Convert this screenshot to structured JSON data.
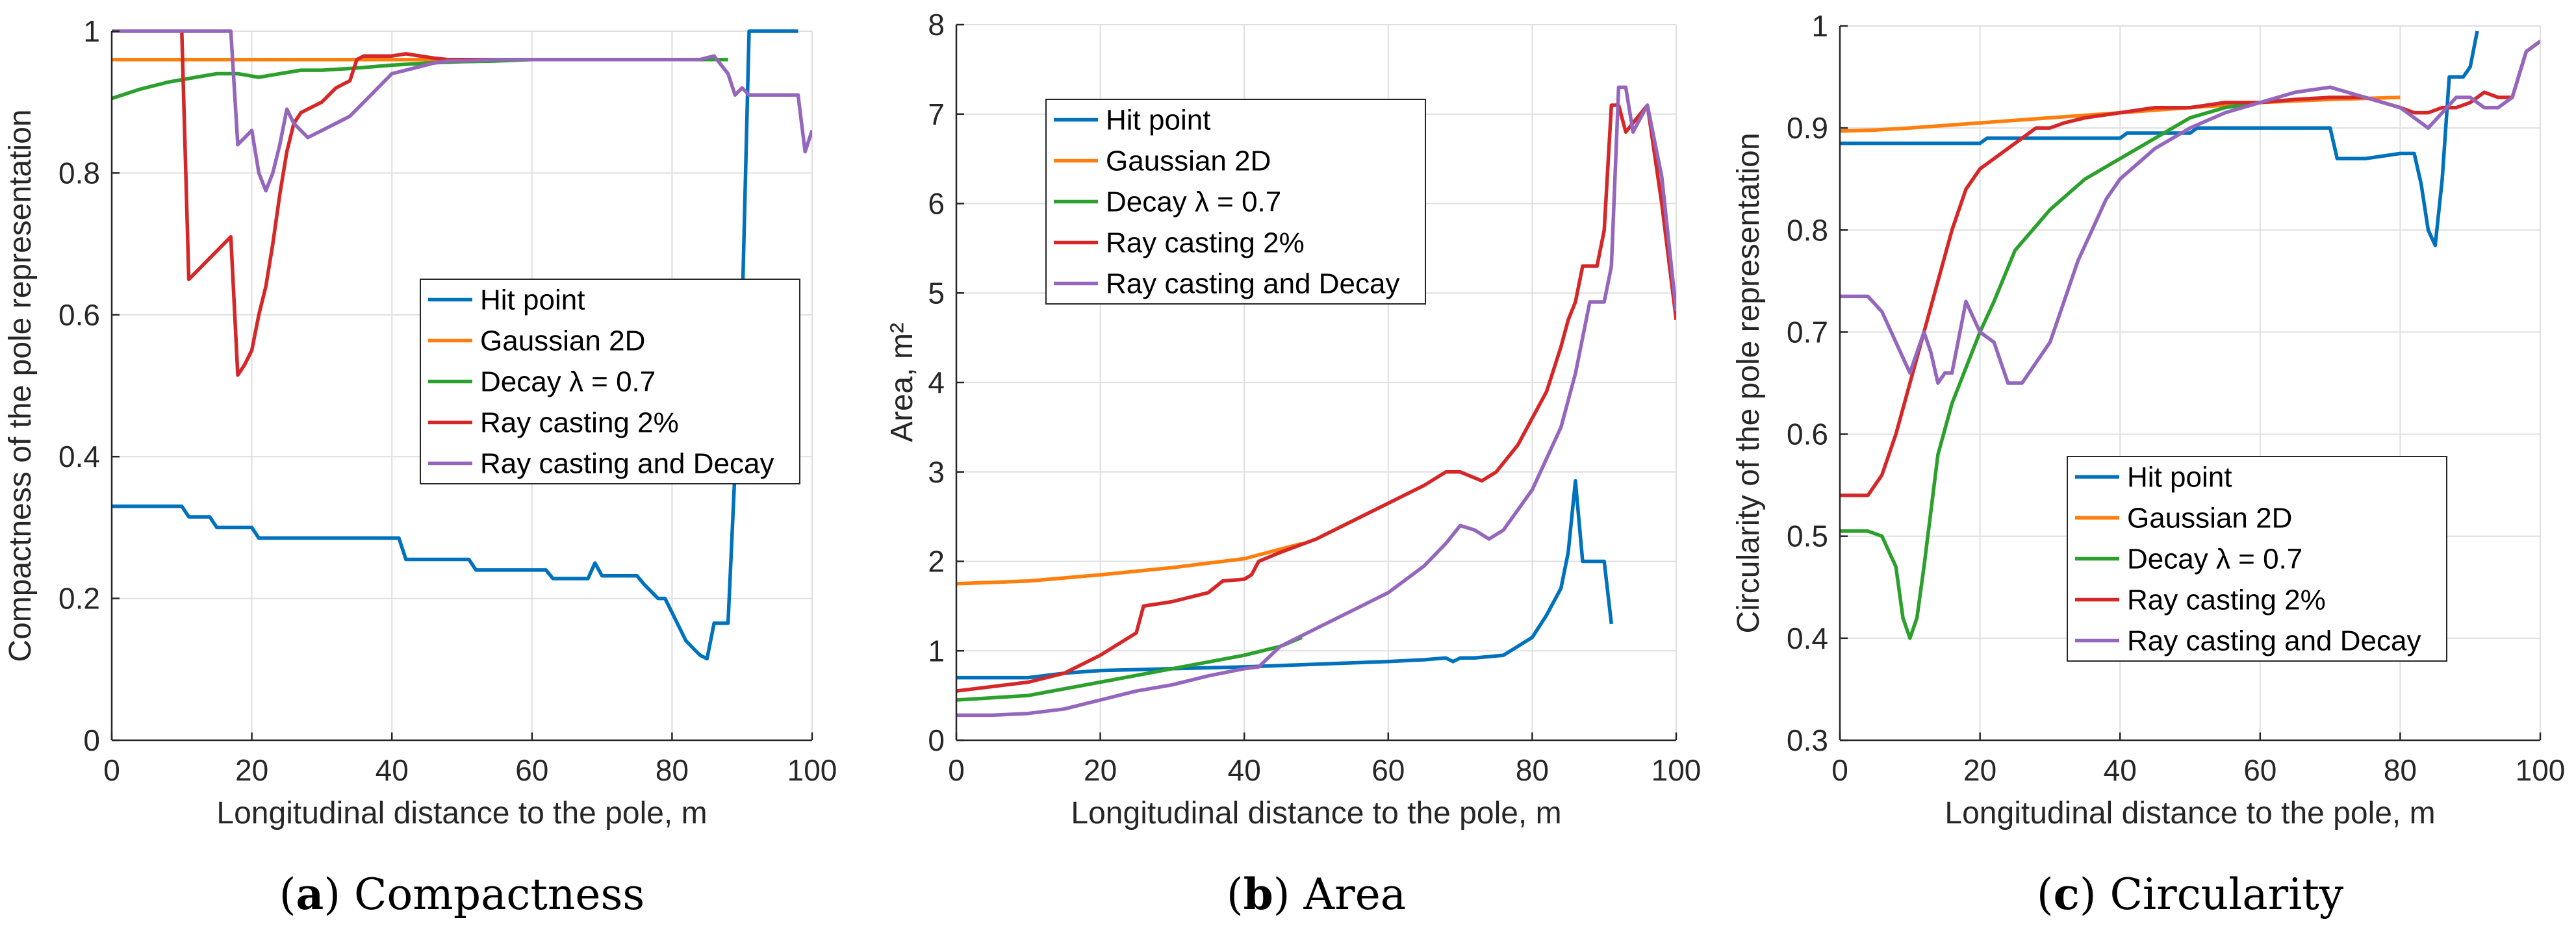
{
  "series_colors": [
    "#0072BD",
    "#FF7F0E",
    "#2CA02C",
    "#D62728",
    "#9467BD"
  ],
  "chart_data": [
    {
      "type": "line",
      "caption_letter": "a",
      "caption_title": "Compactness",
      "xlabel": "Longitudinal distance to the pole, m",
      "ylabel": "Compactness of the pole representation",
      "xlim": [
        0,
        100
      ],
      "ylim": [
        0,
        1
      ],
      "xticks": [
        0,
        20,
        40,
        60,
        80,
        100
      ],
      "yticks": [
        0,
        0.2,
        0.4,
        0.6,
        0.8,
        1
      ],
      "xtick_labels": [
        "0",
        "20",
        "40",
        "60",
        "80",
        "100"
      ],
      "ytick_labels": [
        "0",
        "0.2",
        "0.4",
        "0.6",
        "0.8",
        "1"
      ],
      "grid": true,
      "legend_position": "center-right",
      "series": [
        {
          "name": "Hit point",
          "x": [
            0,
            10,
            11,
            14,
            15,
            20,
            21,
            41,
            42,
            51,
            52,
            62,
            63,
            68,
            69,
            70,
            71,
            75,
            76,
            78,
            79,
            80,
            81,
            82,
            83,
            84,
            85,
            86,
            87,
            88,
            90,
            91,
            92,
            93,
            94,
            95,
            96,
            98
          ],
          "y": [
            0.33,
            0.33,
            0.315,
            0.315,
            0.3,
            0.3,
            0.285,
            0.285,
            0.255,
            0.255,
            0.24,
            0.24,
            0.228,
            0.228,
            0.25,
            0.232,
            0.232,
            0.232,
            0.22,
            0.2,
            0.2,
            0.18,
            0.16,
            0.14,
            0.13,
            0.12,
            0.115,
            0.165,
            0.165,
            0.165,
            0.6,
            1,
            1,
            1,
            1,
            1,
            1,
            1
          ]
        },
        {
          "name": "Gaussian 2D",
          "x": [
            0,
            20,
            40,
            60,
            88
          ],
          "y": [
            0.96,
            0.96,
            0.96,
            0.96,
            0.96
          ]
        },
        {
          "name": "Decay λ = 0.7",
          "x": [
            0,
            4,
            8,
            12,
            15,
            18,
            21,
            24,
            27,
            30,
            35,
            40,
            45,
            50,
            55,
            60,
            65,
            70,
            75,
            80,
            85,
            88
          ],
          "y": [
            0.905,
            0.918,
            0.928,
            0.935,
            0.94,
            0.94,
            0.935,
            0.94,
            0.945,
            0.945,
            0.948,
            0.952,
            0.955,
            0.957,
            0.958,
            0.96,
            0.96,
            0.96,
            0.96,
            0.96,
            0.96,
            0.96
          ]
        },
        {
          "name": "Ray casting 2%",
          "x": [
            10,
            11,
            12,
            14,
            16,
            17,
            18,
            19,
            20,
            21,
            22,
            23,
            24,
            25,
            26,
            27,
            28,
            30,
            32,
            34,
            35,
            36,
            40,
            42,
            44,
            46,
            48,
            50,
            55,
            60,
            66
          ],
          "y": [
            1,
            0.65,
            0.66,
            0.68,
            0.7,
            0.71,
            0.515,
            0.53,
            0.55,
            0.6,
            0.64,
            0.7,
            0.77,
            0.83,
            0.87,
            0.885,
            0.89,
            0.9,
            0.92,
            0.93,
            0.96,
            0.965,
            0.965,
            0.968,
            0.965,
            0.962,
            0.96,
            0.96,
            0.96,
            0.96,
            0.96
          ]
        },
        {
          "name": "Ray casting and Decay",
          "x": [
            0,
            17,
            18,
            20,
            21,
            22,
            23,
            24,
            25,
            26,
            28,
            30,
            32,
            34,
            36,
            38,
            40,
            42,
            44,
            46,
            48,
            50,
            55,
            60,
            70,
            80,
            84,
            86,
            88,
            89,
            90,
            91,
            92,
            94,
            96,
            98,
            99,
            100
          ],
          "y": [
            1,
            1,
            0.84,
            0.86,
            0.8,
            0.775,
            0.8,
            0.84,
            0.89,
            0.87,
            0.85,
            0.86,
            0.87,
            0.88,
            0.9,
            0.92,
            0.94,
            0.945,
            0.95,
            0.955,
            0.958,
            0.958,
            0.96,
            0.96,
            0.96,
            0.96,
            0.96,
            0.965,
            0.94,
            0.91,
            0.92,
            0.91,
            0.91,
            0.91,
            0.91,
            0.91,
            0.83,
            0.86
          ]
        }
      ]
    },
    {
      "type": "line",
      "caption_letter": "b",
      "caption_title": "Area",
      "xlabel": "Longitudinal distance to the pole, m",
      "ylabel": "Area, m²",
      "xlim": [
        0,
        100
      ],
      "ylim": [
        0,
        8
      ],
      "xticks": [
        0,
        20,
        40,
        60,
        80,
        100
      ],
      "yticks": [
        0,
        1,
        2,
        3,
        4,
        5,
        6,
        7,
        8
      ],
      "xtick_labels": [
        "0",
        "20",
        "40",
        "60",
        "80",
        "100"
      ],
      "ytick_labels": [
        "0",
        "1",
        "2",
        "3",
        "4",
        "5",
        "6",
        "7",
        "8"
      ],
      "grid": true,
      "legend_position": "top-left",
      "series": [
        {
          "name": "Hit point",
          "x": [
            0,
            10,
            15,
            20,
            30,
            40,
            50,
            60,
            65,
            68,
            69,
            70,
            72,
            76,
            78,
            80,
            82,
            84,
            85,
            86,
            87,
            88,
            90,
            91
          ],
          "y": [
            0.7,
            0.7,
            0.75,
            0.78,
            0.8,
            0.82,
            0.85,
            0.88,
            0.9,
            0.92,
            0.88,
            0.92,
            0.92,
            0.95,
            1.05,
            1.15,
            1.4,
            1.7,
            2.1,
            2.9,
            2.0,
            2.0,
            2.0,
            1.3
          ]
        },
        {
          "name": "Gaussian 2D",
          "x": [
            0,
            10,
            20,
            30,
            40,
            48
          ],
          "y": [
            1.75,
            1.78,
            1.85,
            1.93,
            2.03,
            2.2
          ]
        },
        {
          "name": "Decay λ = 0.7",
          "x": [
            0,
            10,
            20,
            30,
            40,
            45,
            48
          ],
          "y": [
            0.45,
            0.5,
            0.65,
            0.8,
            0.95,
            1.05,
            1.15
          ]
        },
        {
          "name": "Ray casting 2%",
          "x": [
            0,
            5,
            10,
            15,
            20,
            25,
            26,
            30,
            35,
            37,
            40,
            41,
            42,
            45,
            50,
            55,
            60,
            65,
            68,
            70,
            73,
            75,
            78,
            80,
            82,
            84,
            85,
            86,
            87,
            88,
            89,
            90,
            91,
            92,
            93,
            94,
            96,
            98,
            100
          ],
          "y": [
            0.55,
            0.6,
            0.65,
            0.75,
            0.95,
            1.2,
            1.5,
            1.55,
            1.65,
            1.78,
            1.8,
            1.85,
            2.0,
            2.1,
            2.25,
            2.45,
            2.65,
            2.85,
            3.0,
            3.0,
            2.9,
            3.0,
            3.3,
            3.6,
            3.9,
            4.4,
            4.7,
            4.9,
            5.3,
            5.3,
            5.3,
            5.7,
            7.1,
            7.1,
            6.8,
            6.9,
            7.1,
            6.0,
            4.7
          ]
        },
        {
          "name": "Ray casting and Decay",
          "x": [
            0,
            5,
            10,
            15,
            20,
            25,
            30,
            35,
            40,
            42,
            45,
            50,
            55,
            60,
            65,
            68,
            70,
            72,
            74,
            76,
            80,
            84,
            86,
            87,
            88,
            90,
            91,
            92,
            93,
            94,
            96,
            98,
            100
          ],
          "y": [
            0.28,
            0.28,
            0.3,
            0.35,
            0.45,
            0.55,
            0.62,
            0.72,
            0.8,
            0.82,
            1.05,
            1.25,
            1.45,
            1.65,
            1.95,
            2.2,
            2.4,
            2.35,
            2.25,
            2.35,
            2.8,
            3.5,
            4.1,
            4.5,
            4.9,
            4.9,
            5.3,
            7.3,
            7.3,
            6.8,
            7.1,
            6.3,
            4.8
          ]
        }
      ]
    },
    {
      "type": "line",
      "caption_letter": "c",
      "caption_title": "Circularity",
      "xlabel": "Longitudinal distance to the pole, m",
      "ylabel": "Circularity of the pole representation",
      "xlim": [
        0,
        100
      ],
      "ylim": [
        0.3,
        1
      ],
      "xticks": [
        0,
        20,
        40,
        60,
        80,
        100
      ],
      "yticks": [
        0.3,
        0.4,
        0.5,
        0.6,
        0.7,
        0.8,
        0.9,
        1
      ],
      "xtick_labels": [
        "0",
        "20",
        "40",
        "60",
        "80",
        "100"
      ],
      "ytick_labels": [
        "0.3",
        "0.4",
        "0.5",
        "0.6",
        "0.7",
        "0.8",
        "0.9",
        "1"
      ],
      "grid": true,
      "legend_position": "bottom-center",
      "series": [
        {
          "name": "Hit point",
          "x": [
            0,
            20,
            21,
            40,
            41,
            50,
            51,
            70,
            71,
            75,
            80,
            82,
            83,
            84,
            85,
            86,
            87,
            88,
            89,
            90,
            91
          ],
          "y": [
            0.885,
            0.885,
            0.89,
            0.89,
            0.895,
            0.895,
            0.9,
            0.9,
            0.87,
            0.87,
            0.875,
            0.875,
            0.845,
            0.8,
            0.785,
            0.85,
            0.95,
            0.95,
            0.95,
            0.96,
            0.995
          ]
        },
        {
          "name": "Gaussian 2D",
          "x": [
            0,
            5,
            10,
            20,
            30,
            40,
            50,
            60,
            70,
            80
          ],
          "y": [
            0.897,
            0.898,
            0.9,
            0.905,
            0.91,
            0.915,
            0.92,
            0.925,
            0.928,
            0.93
          ]
        },
        {
          "name": "Decay λ = 0.7",
          "x": [
            0,
            4,
            6,
            8,
            9,
            10,
            11,
            12,
            14,
            16,
            20,
            22,
            25,
            30,
            35,
            40,
            45,
            50,
            55,
            60
          ],
          "y": [
            0.505,
            0.505,
            0.5,
            0.47,
            0.42,
            0.4,
            0.42,
            0.47,
            0.58,
            0.63,
            0.7,
            0.73,
            0.78,
            0.82,
            0.85,
            0.87,
            0.89,
            0.91,
            0.92,
            0.925
          ]
        },
        {
          "name": "Ray casting 2%",
          "x": [
            0,
            4,
            6,
            8,
            10,
            12,
            14,
            16,
            18,
            20,
            22,
            24,
            26,
            28,
            30,
            32,
            35,
            40,
            45,
            50,
            55,
            60,
            65,
            70,
            75,
            80,
            82,
            84,
            86,
            88,
            90,
            92,
            94,
            96,
            98,
            100
          ],
          "y": [
            0.54,
            0.54,
            0.56,
            0.6,
            0.65,
            0.7,
            0.75,
            0.8,
            0.84,
            0.86,
            0.87,
            0.88,
            0.89,
            0.9,
            0.9,
            0.905,
            0.91,
            0.915,
            0.92,
            0.92,
            0.925,
            0.925,
            0.928,
            0.93,
            0.93,
            0.92,
            0.915,
            0.915,
            0.92,
            0.92,
            0.925,
            0.935,
            0.93,
            0.93,
            0.975,
            0.985
          ]
        },
        {
          "name": "Ray casting and Decay",
          "x": [
            0,
            4,
            6,
            8,
            10,
            12,
            13,
            14,
            15,
            16,
            18,
            20,
            22,
            24,
            26,
            28,
            30,
            32,
            34,
            36,
            38,
            40,
            45,
            50,
            55,
            60,
            65,
            70,
            75,
            80,
            82,
            84,
            86,
            88,
            90,
            92,
            94,
            96,
            98,
            100
          ],
          "y": [
            0.735,
            0.735,
            0.72,
            0.69,
            0.66,
            0.7,
            0.68,
            0.65,
            0.66,
            0.66,
            0.73,
            0.7,
            0.69,
            0.65,
            0.65,
            0.67,
            0.69,
            0.73,
            0.77,
            0.8,
            0.83,
            0.85,
            0.88,
            0.9,
            0.915,
            0.925,
            0.935,
            0.94,
            0.93,
            0.92,
            0.91,
            0.9,
            0.915,
            0.93,
            0.93,
            0.92,
            0.92,
            0.93,
            0.975,
            0.985
          ]
        }
      ]
    }
  ]
}
